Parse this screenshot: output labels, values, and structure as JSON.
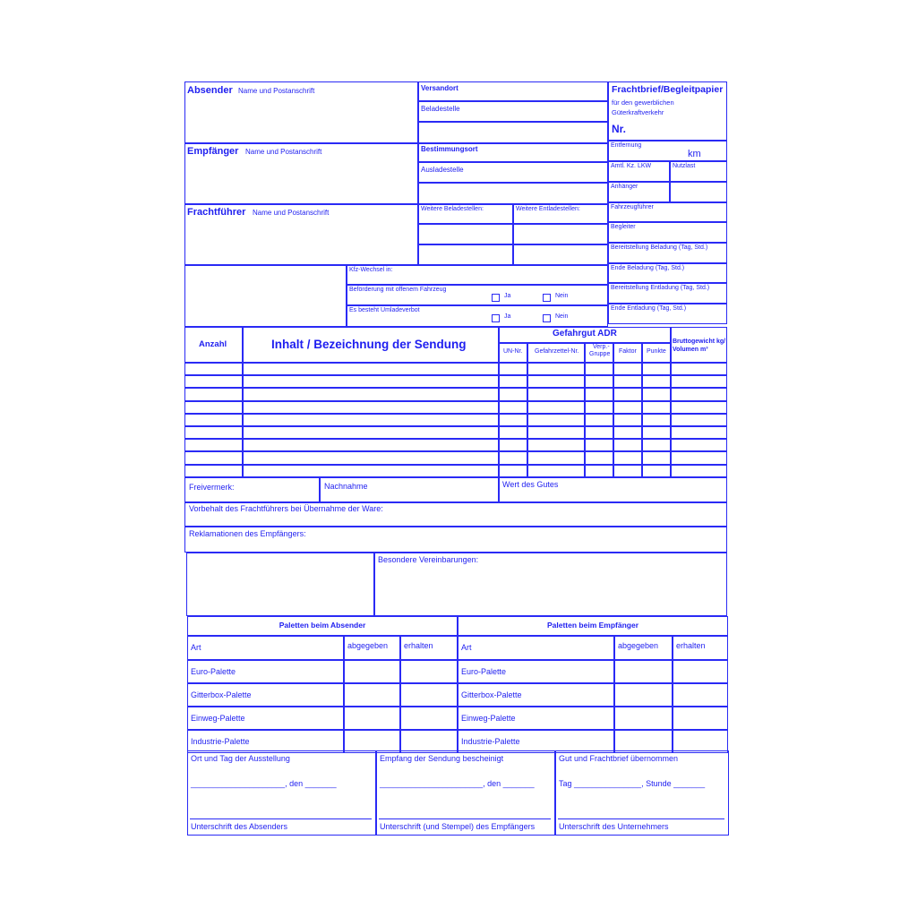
{
  "header": {
    "absender": "Absender",
    "absender_sub": "Name und Postanschrift",
    "empfaenger": "Empfänger",
    "empfaenger_sub": "Name und Postanschrift",
    "frachtfuehrer": "Frachtführer",
    "frachtfuehrer_sub": "Name und Postanschrift",
    "versandort": "Versandort",
    "beladestelle": "Beladestelle",
    "bestimmungsort": "Bestimmungsort",
    "ausladestelle": "Ausladestelle",
    "weitere_belade": "Weitere Beladestellen:",
    "weitere_entlade": "Weitere Entladestellen:",
    "title": "Frachtbrief/Begleitpapier",
    "subtitle1": "für den gewerblichen",
    "subtitle2": "Güterkraftverkehr",
    "nr": "Nr.",
    "entfernung": "Entfernung",
    "km": "km",
    "amtl_kz": "Amtl. Kz. LKW",
    "nutzlast": "Nutzlast",
    "anhaenger": "Anhänger",
    "fahrzeugfuehrer": "Fahrzeugführer",
    "begleiter": "Begleiter",
    "bereit_beladung": "Bereitstellung Beladung (Tag, Std.)",
    "ende_beladung": "Ende Beladung (Tag, Std.)",
    "bereit_entladung": "Bereitstellung Entladung (Tag, Std.)",
    "ende_entladung": "Ende Entladung (Tag, Std.)",
    "kfz_wechsel": "Kfz-Wechsel in:",
    "offenes_fahrzeug": "Beförderung mit offenem Fahrzeug",
    "umladeverbot": "Es besteht Umladeverbot",
    "ja": "Ja",
    "nein": "Nein"
  },
  "goods": {
    "anzahl": "Anzahl",
    "inhalt": "Inhalt / Bezeichnung der Sendung",
    "gefahrgut": "Gefahrgut ADR",
    "un_nr": "UN-Nr.",
    "gefahrzettel": "Gefahrzettel-Nr.",
    "verp1": "Verp.-",
    "verp2": "Gruppe",
    "faktor": "Faktor",
    "punkte": "Punkte",
    "brutto1": "Bruttogewicht kg/",
    "brutto2": "Volumen m³"
  },
  "remarks": {
    "freivermerk": "Freivermerk:",
    "nachnahme": "Nachnahme",
    "wert": "Wert des Gutes",
    "vorbehalt": "Vorbehalt des Frachtführers bei Übernahme der Ware:",
    "reklamationen": "Reklamationen des Empfängers:",
    "besondere": "Besondere Vereinbarungen:"
  },
  "pallets": {
    "absender_title": "Paletten beim Absender",
    "empfaenger_title": "Paletten beim Empfänger",
    "art": "Art",
    "abgegeben": "abgegeben",
    "erhalten": "erhalten",
    "types": [
      "Euro-Palette",
      "Gitterbox-Palette",
      "Einweg-Palette",
      "Industrie-Palette"
    ]
  },
  "signatures": {
    "ort_tag": "Ort und Tag der Ausstellung",
    "den": "_____________________, den _______",
    "empfang": "Empfang der Sendung bescheinigt",
    "den2": "_______________________, den _______",
    "gut_uebernommen": "Gut und Frachtbrief übernommen",
    "tag_stunde": "Tag _______________, Stunde _______",
    "sig_absender": "Unterschrift des Absenders",
    "sig_empfaenger": "Unterschrift (und Stempel) des Empfängers",
    "sig_unternehmer": "Unterschrift des Unternehmers"
  },
  "colors": {
    "ink": "#1e1ef0",
    "paper": "#ffffff"
  }
}
